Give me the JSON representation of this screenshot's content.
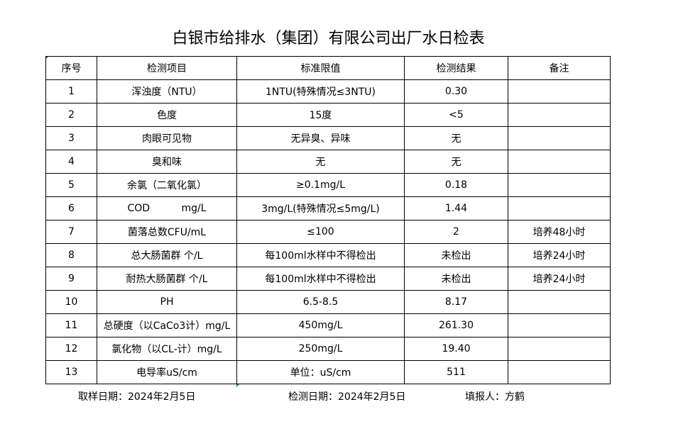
{
  "title": "白银市给排水（集团）有限公司出厂水日检表",
  "headers": [
    "序号",
    "检测项目",
    "标准限值",
    "检测结果",
    "备注"
  ],
  "rows": [
    [
      "1",
      "浑浊度（NTU）",
      "1NTU(特殊情况≤3NTU)",
      "0.30",
      ""
    ],
    [
      "2",
      "色度",
      "15度",
      "<5",
      ""
    ],
    [
      "3",
      "肉眼可见物",
      "无异臭、异味",
      "无",
      ""
    ],
    [
      "4",
      "臭和味",
      "无",
      "无",
      ""
    ],
    [
      "5",
      "余氯（二氧化氯）",
      "≥0.1mg/L",
      "0.18",
      ""
    ],
    [
      "6",
      "COD          mg/L",
      "3mg/L(特殊情况≤5mg/L)",
      "1.44",
      ""
    ],
    [
      "7",
      "菌落总数CFU/mL",
      "≤100",
      "2",
      "培养48小时"
    ],
    [
      "8",
      "总大肠菌群 个/L",
      "每100ml水样中不得检出",
      "未检出",
      "培养24小时"
    ],
    [
      "9",
      "耐热大肠菌群 个/L",
      "每100ml水样中不得检出",
      "未检出",
      "培养24小时"
    ],
    [
      "10",
      "PH",
      "6.5-8.5",
      "8.17",
      ""
    ],
    [
      "11",
      "总硬度（以CaCo3计）mg/L",
      "450mg/L",
      "261.30",
      ""
    ],
    [
      "12",
      "氯化物（以CL-计）mg/L",
      "250mg/L",
      "19.40",
      ""
    ],
    [
      "13",
      "电导率uS/cm",
      "单位：uS/cm",
      "511",
      ""
    ]
  ],
  "footer": {
    "sampling_date": "取样日期：2024年2月5日",
    "test_date": "检测日期：2024年2月5日",
    "reporter": "填报人：方鹤"
  }
}
